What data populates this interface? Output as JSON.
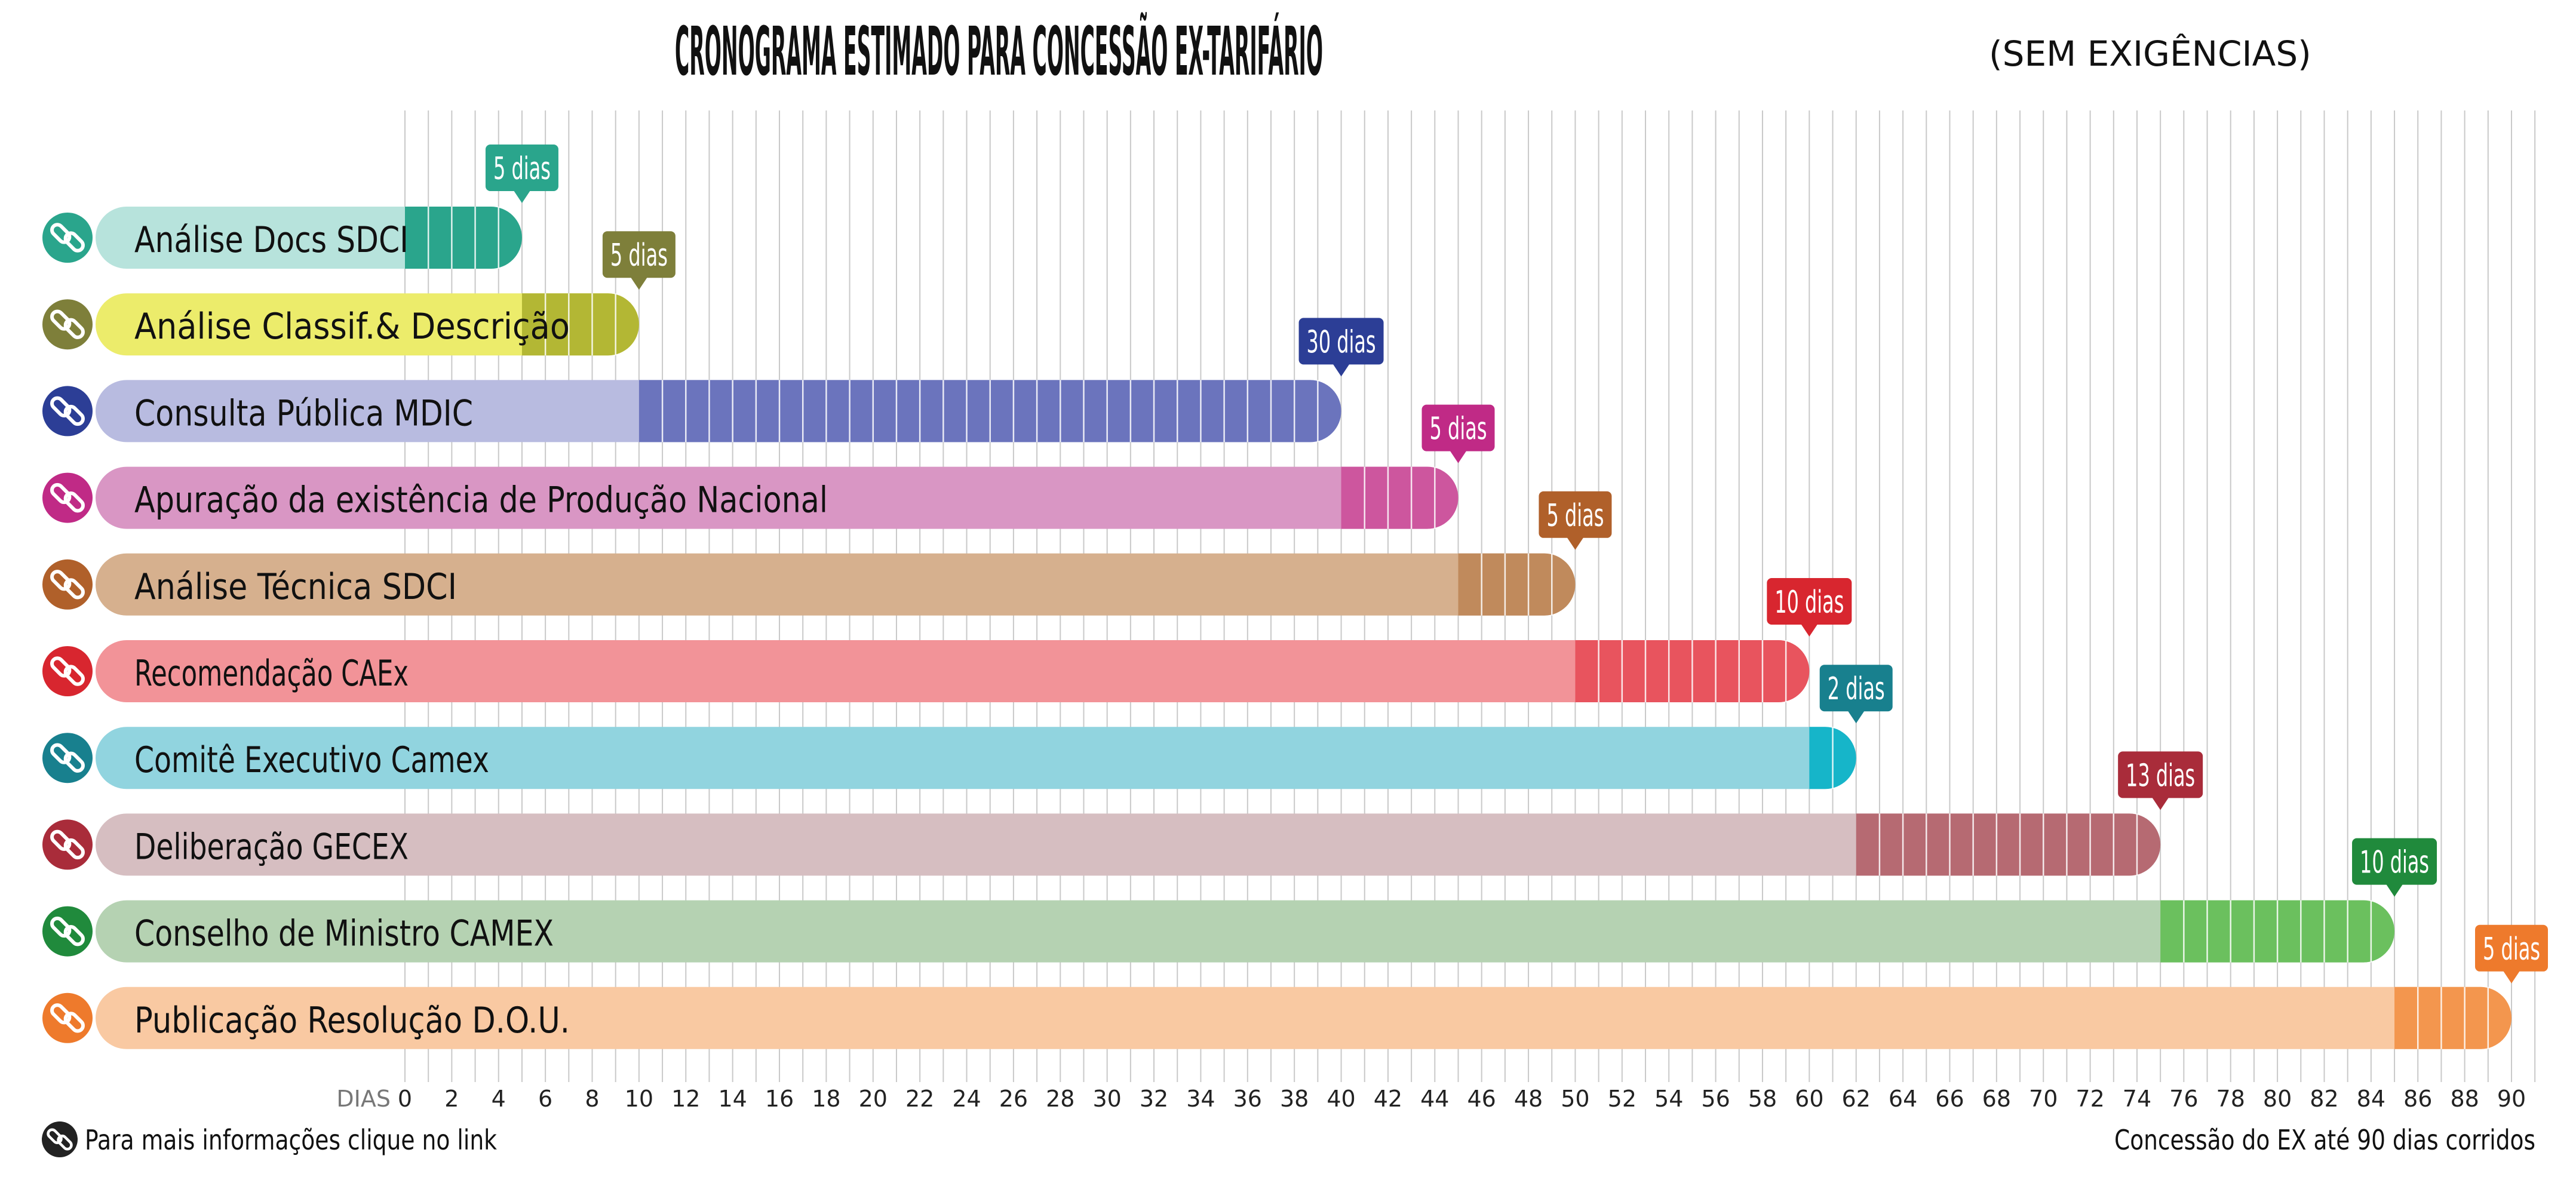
{
  "title": "CRONOGRAMA ESTIMADO PARA CONCESSÃO EX-TARIFÁRIO",
  "subtitle": "(SEM EXIGÊNCIAS)",
  "footer": {
    "link_text": "Para mais informações clique no link",
    "note": "Concessão do EX até 90 dias corridos"
  },
  "chart_data": {
    "type": "bar",
    "orientation": "horizontal",
    "stacked": true,
    "xlabel": "DIAS",
    "xlim": [
      0,
      90
    ],
    "x_tick_step": 2,
    "x_ticks": [
      0,
      2,
      4,
      6,
      8,
      10,
      12,
      14,
      16,
      18,
      20,
      22,
      24,
      26,
      28,
      30,
      32,
      34,
      36,
      38,
      40,
      42,
      44,
      46,
      48,
      50,
      52,
      54,
      56,
      58,
      60,
      62,
      64,
      66,
      68,
      70,
      72,
      74,
      76,
      78,
      80,
      82,
      84,
      86,
      88,
      90
    ],
    "grid": true,
    "categories": [
      "Análise Docs SDCI",
      "Análise Classif.& Descrição",
      "Consulta Pública MDIC",
      "Apuração da existência de Produção Nacional",
      "Análise Técnica SDCI",
      "Recomendação CAEx",
      "Comitê Executivo Camex",
      "Deliberação GECEX",
      "Conselho de Ministro CAMEX",
      "Publicação Resolução D.O.U."
    ],
    "tasks": [
      {
        "label": "Análise Docs SDCI",
        "start": 0,
        "duration": 5,
        "duration_label": "5 dias",
        "color": "#2aa58c",
        "light": "#b7e3dc",
        "icon": "link-icon"
      },
      {
        "label": "Análise Classif.& Descrição",
        "start": 5,
        "duration": 5,
        "duration_label": "5 dias",
        "color": "#b3b734",
        "light": "#ecec6b",
        "tag": "#7e7f3a",
        "icon": "link-icon"
      },
      {
        "label": "Consulta Pública MDIC",
        "start": 10,
        "duration": 30,
        "duration_label": "30 dias",
        "color": "#6b74bd",
        "light": "#b8bbe0",
        "tag": "#2c3e96",
        "icon": "link-icon"
      },
      {
        "label": "Apuração da existência de Produção Nacional",
        "start": 40,
        "duration": 5,
        "duration_label": "5 dias",
        "color": "#cd569e",
        "light": "#d996c4",
        "tag": "#c02a86",
        "icon": "link-icon"
      },
      {
        "label": "Análise Técnica SDCI",
        "start": 45,
        "duration": 5,
        "duration_label": "5 dias",
        "color": "#c08a5c",
        "light": "#d6b08e",
        "tag": "#b0602a",
        "icon": "link-icon"
      },
      {
        "label": "Recomendação CAEx",
        "start": 50,
        "duration": 10,
        "duration_label": "10 dias",
        "color": "#e8545e",
        "light": "#f29398",
        "tag": "#d8262f",
        "icon": "link-icon"
      },
      {
        "label": "Comitê Executivo Camex",
        "start": 60,
        "duration": 2,
        "duration_label": "2 dias",
        "color": "#16b5c9",
        "light": "#91d4df",
        "tag": "#18808e",
        "icon": "link-icon"
      },
      {
        "label": "Deliberação GECEX",
        "start": 62,
        "duration": 13,
        "duration_label": "13 dias",
        "color": "#b66a72",
        "light": "#d6bec1",
        "tag": "#a92c3a",
        "icon": "link-icon"
      },
      {
        "label": "Conselho de Ministro CAMEX",
        "start": 75,
        "duration": 10,
        "duration_label": "10 dias",
        "color": "#6bc05e",
        "light": "#b5d2b2",
        "tag": "#208a3c",
        "icon": "link-icon"
      },
      {
        "label": "Publicação Resolução D.O.U.",
        "start": 85,
        "duration": 5,
        "duration_label": "5 dias",
        "color": "#f3964e",
        "light": "#f9c9a2",
        "tag": "#ee7a2c",
        "icon": "link-icon"
      }
    ]
  }
}
